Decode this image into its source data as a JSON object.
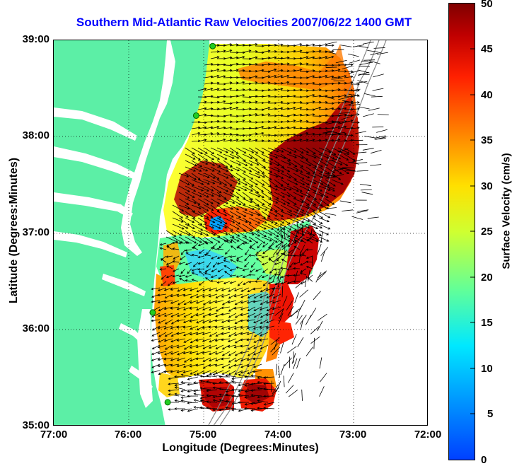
{
  "title": "Southern Mid-Atlantic Raw Velocities 2007/06/22 1400 GMT",
  "axes": {
    "xlabel": "Longitude (Degrees:Minutes)",
    "ylabel": "Latitude (Degrees:Minutes)",
    "xticks": [
      "77:00",
      "76:00",
      "75:00",
      "74:00",
      "73:00",
      "72:00"
    ],
    "yticks": [
      "39:00",
      "38:00",
      "37:00",
      "36:00",
      "35:00"
    ],
    "x_range_deg_west": [
      77,
      72
    ],
    "y_range_deg_north": [
      35,
      39
    ],
    "grid": "dotted"
  },
  "colorbar": {
    "label": "Surface Velocity (cm/s)",
    "ticks": [
      "50",
      "45",
      "40",
      "35",
      "30",
      "25",
      "20",
      "15",
      "10",
      "5",
      "0"
    ],
    "range": [
      0,
      50
    ],
    "colormap": "jet"
  },
  "colors": {
    "land": "#5cefa6",
    "water": "#ffffff",
    "title": "#0000ff",
    "station": "#22cc22",
    "arrows": "#000000"
  },
  "stations": [
    {
      "lon": 74.88,
      "lat": 38.94
    },
    {
      "lon": 75.1,
      "lat": 38.22
    },
    {
      "lon": 75.68,
      "lat": 36.18
    },
    {
      "lon": 75.48,
      "lat": 35.25
    }
  ]
}
